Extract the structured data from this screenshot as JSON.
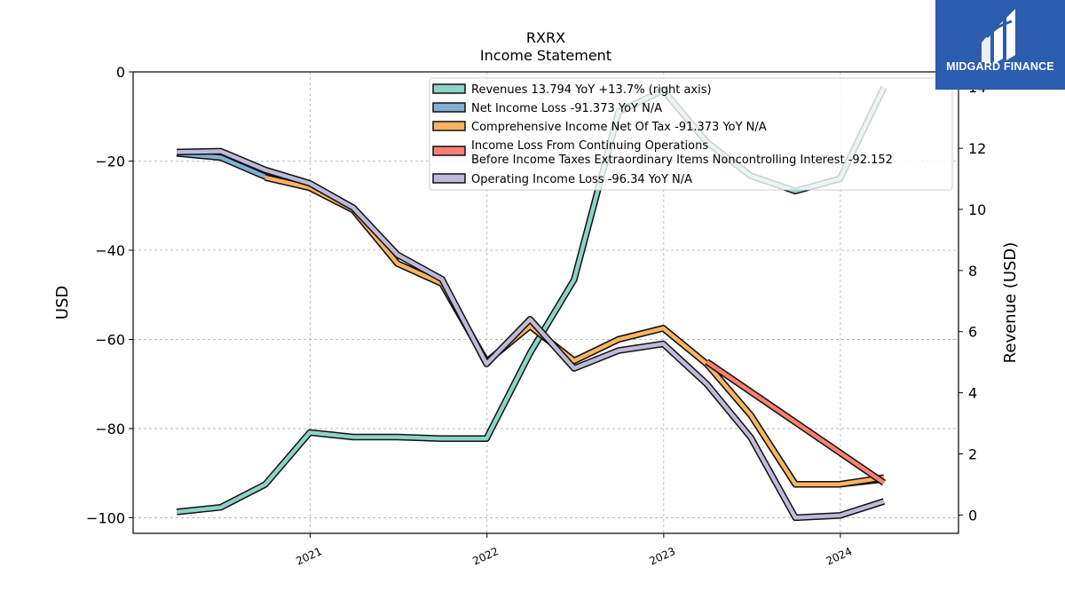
{
  "chart_data": {
    "type": "line",
    "title": "RXRX",
    "subtitle": "Income Statement",
    "ylabel": "USD",
    "y2label": "Revenue (USD)",
    "x_ticks": [
      "2021",
      "2022",
      "2023",
      "2024"
    ],
    "ylim": [
      -103.5,
      0
    ],
    "y_ticks": [
      0,
      -20,
      -40,
      -60,
      -80,
      -100
    ],
    "y_tick_labels": [
      "0",
      "−20",
      "−40",
      "−60",
      "−80",
      "−100"
    ],
    "y2lim": [
      -0.6,
      14.5
    ],
    "y2_ticks": [
      0,
      2,
      4,
      6,
      8,
      10,
      12,
      14
    ],
    "grid": true,
    "legend_position": "top-right",
    "series": [
      {
        "name": "Revenues  13.794 YoY +13.7% (right axis)",
        "axis": "right",
        "color": "#8dd3c7",
        "x": [
          "2020-03-31",
          "2020-06-30",
          "2020-09-30",
          "2020-12-31",
          "2021-03-31",
          "2021-06-30",
          "2021-09-30",
          "2021-12-31",
          "2022-03-31",
          "2022-06-30",
          "2022-09-30",
          "2022-12-31",
          "2023-03-31",
          "2023-06-30",
          "2023-09-30",
          "2023-12-31",
          "2024-03-31"
        ],
        "values": [
          0.1,
          0.25,
          1.0,
          2.7,
          2.55,
          2.55,
          2.5,
          2.5,
          5.3,
          7.7,
          13.2,
          13.9,
          12.2,
          11.1,
          10.6,
          11.0,
          14.0
        ]
      },
      {
        "name": "Net Income Loss  -91.373 YoY N/A",
        "axis": "left",
        "color": "#80b1d3",
        "x": [
          "2020-03-31",
          "2020-06-30",
          "2020-09-30",
          "2020-12-31",
          "2021-03-31",
          "2021-06-30",
          "2021-09-30",
          "2021-12-31",
          "2022-03-31",
          "2022-06-30",
          "2022-09-30",
          "2022-12-31",
          "2023-03-31",
          "2023-06-30",
          "2023-09-30",
          "2023-12-31",
          "2024-03-31"
        ],
        "values": [
          -18.3,
          -19.2,
          -23.5,
          -26.0,
          -31.0,
          -43.0,
          -47.5,
          -65.0,
          -57.0,
          -64.8,
          -60.0,
          -57.5,
          -65.5,
          -77.0,
          -92.5,
          -92.5,
          -91.373
        ]
      },
      {
        "name": "Comprehensive Income Net Of Tax  -91.373 YoY N/A",
        "axis": "left",
        "color": "#fdb462",
        "x": [
          "2020-09-30",
          "2020-12-31",
          "2021-03-31",
          "2021-06-30",
          "2021-09-30",
          "2021-12-31",
          "2022-03-31",
          "2022-06-30",
          "2022-09-30",
          "2022-12-31",
          "2023-03-31",
          "2023-06-30",
          "2023-09-30",
          "2023-12-31",
          "2024-03-31"
        ],
        "values": [
          -23.7,
          -26.0,
          -31.0,
          -43.0,
          -47.5,
          -65.0,
          -57.0,
          -64.8,
          -60.0,
          -57.5,
          -65.5,
          -77.0,
          -92.5,
          -92.5,
          -91.0
        ]
      },
      {
        "name": "Income Loss From Continuing Operations Before Income Taxes Extraordinary Items Noncontrolling Interest  -92.152",
        "axis": "left",
        "color": "#fb8072",
        "x": [
          "2023-03-31",
          "2024-03-31"
        ],
        "values": [
          -65.0,
          -92.152
        ]
      },
      {
        "name": "Operating Income Loss  -96.34 YoY N/A",
        "axis": "left",
        "color": "#bebada",
        "x": [
          "2020-03-31",
          "2020-06-30",
          "2020-09-30",
          "2020-12-31",
          "2021-03-31",
          "2021-06-30",
          "2021-09-30",
          "2021-12-31",
          "2022-03-31",
          "2022-06-30",
          "2022-09-30",
          "2022-12-31",
          "2023-03-31",
          "2023-06-30",
          "2023-09-30",
          "2023-12-31",
          "2024-03-31"
        ],
        "values": [
          -18.0,
          -17.8,
          -22.0,
          -25.0,
          -30.5,
          -41.0,
          -46.5,
          -65.5,
          -55.5,
          -66.5,
          -62.5,
          -61.0,
          -70.0,
          -82.0,
          -100.0,
          -99.5,
          -96.34
        ]
      }
    ]
  },
  "legend_lines": [
    [
      "Revenues  13.794 YoY +13.7% (right axis)"
    ],
    [
      "Net Income Loss  -91.373 YoY N/A"
    ],
    [
      "Comprehensive Income Net Of Tax  -91.373 YoY N/A"
    ],
    [
      "Income Loss From Continuing Operations",
      "Before Income Taxes Extraordinary Items Noncontrolling Interest  -92.152"
    ],
    [
      "Operating Income Loss  -96.34 YoY N/A"
    ]
  ],
  "logo": {
    "text": "MIDGARD FINANCE",
    "background": "#2b5cad"
  }
}
